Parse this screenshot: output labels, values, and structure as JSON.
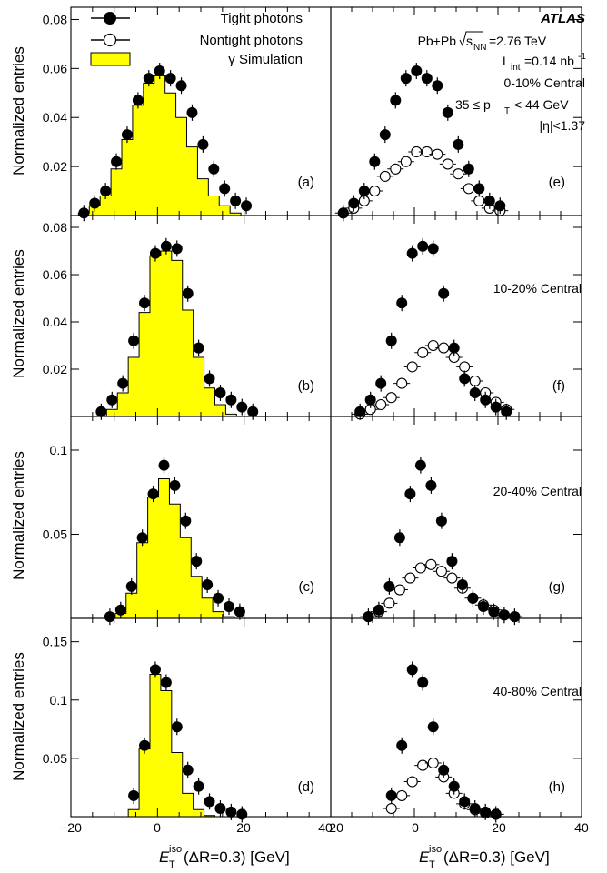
{
  "figure": {
    "ylabel": "Normalized entries",
    "xlabel_main": "E",
    "xlabel_sub": "T",
    "xlabel_sup": "iso",
    "xlabel_rest": "(ΔR=0.3) [GeV]",
    "xticks": [
      "−20",
      "0",
      "20",
      "40"
    ],
    "xticks_right": [
      "−20",
      "0",
      "20",
      "40"
    ],
    "legend": [
      "Tight photons",
      "Nontight photons",
      "γ Simulation"
    ],
    "info": {
      "atlas": "ATLAS",
      "line1_a": "Pb+Pb",
      "line1_sqrt": "s",
      "line1_sub": "NN",
      "line1_b": "=2.76 TeV",
      "line2_a": "L",
      "line2_sub": "int",
      "line2_b": "=0.14 nb",
      "line2_sup": "-1",
      "line3": "0-10% Central",
      "line4_a": "35 ≤ p",
      "line4_sub": "T",
      "line4_b": "< 44 GeV",
      "line5": "|η|<1.37"
    },
    "colors": {
      "sim_fill": "#ffff00",
      "axis": "#000000"
    }
  },
  "chart_data": [
    {
      "type": "scatter",
      "panel": "a",
      "label": "(a)",
      "xlim": [
        -20,
        40
      ],
      "ylim": [
        0,
        0.085
      ],
      "yticks": [
        0.02,
        0.04,
        0.06,
        0.08
      ],
      "x": [
        -17,
        -14.5,
        -12,
        -9.5,
        -7,
        -4.5,
        -2,
        0.5,
        3,
        5.5,
        8,
        10.5,
        13,
        15.5,
        18,
        20.5
      ],
      "tight": [
        0.001,
        0.005,
        0.01,
        0.022,
        0.033,
        0.047,
        0.056,
        0.059,
        0.056,
        0.053,
        0.042,
        0.029,
        0.019,
        0.011,
        0.006,
        0.004
      ],
      "sim": [
        0.001,
        0.004,
        0.008,
        0.019,
        0.031,
        0.045,
        0.054,
        0.057,
        0.05,
        0.04,
        0.028,
        0.015,
        0.008,
        0.004,
        0.001,
        0
      ]
    },
    {
      "type": "scatter",
      "panel": "b",
      "label": "(b)",
      "xlim": [
        -20,
        40
      ],
      "ylim": [
        0,
        0.085
      ],
      "yticks": [
        0.02,
        0.04,
        0.06,
        0.08
      ],
      "x": [
        -13,
        -10.5,
        -8,
        -5.5,
        -3,
        -0.5,
        2,
        4.5,
        7,
        9.5,
        12,
        14.5,
        17,
        19.5,
        22
      ],
      "tight": [
        0.002,
        0.007,
        0.014,
        0.032,
        0.048,
        0.069,
        0.072,
        0.071,
        0.052,
        0.029,
        0.016,
        0.01,
        0.007,
        0.004,
        0.002
      ],
      "sim": [
        0,
        0.003,
        0.01,
        0.025,
        0.044,
        0.068,
        0.07,
        0.066,
        0.045,
        0.025,
        0.012,
        0.005,
        0.001,
        0,
        0
      ]
    },
    {
      "type": "scatter",
      "panel": "c",
      "label": "(c)",
      "xlim": [
        -20,
        40
      ],
      "ylim": [
        0,
        0.12
      ],
      "yticks": [
        0.05,
        0.1
      ],
      "x": [
        -11,
        -8.5,
        -6,
        -3.5,
        -1,
        1.5,
        4,
        6.5,
        9,
        11.5,
        14,
        16.5,
        19
      ],
      "tight": [
        0.001,
        0.005,
        0.019,
        0.048,
        0.074,
        0.091,
        0.079,
        0.058,
        0.034,
        0.02,
        0.012,
        0.007,
        0.004
      ],
      "sim": [
        0,
        0.003,
        0.015,
        0.045,
        0.072,
        0.083,
        0.068,
        0.048,
        0.025,
        0.012,
        0.004,
        0.001,
        0
      ]
    },
    {
      "type": "scatter",
      "panel": "d",
      "label": "(d)",
      "xlim": [
        -20,
        40
      ],
      "ylim": [
        0,
        0.17
      ],
      "yticks": [
        0.05,
        0.1,
        0.15
      ],
      "x": [
        -5.5,
        -3,
        -0.5,
        2,
        4.5,
        7,
        9.5,
        12,
        14.5,
        17,
        19.5
      ],
      "tight": [
        0.018,
        0.061,
        0.126,
        0.115,
        0.077,
        0.04,
        0.026,
        0.013,
        0.007,
        0.004,
        0.002
      ],
      "sim": [
        0.006,
        0.058,
        0.122,
        0.108,
        0.055,
        0.02,
        0.006,
        0.001,
        0,
        0,
        0
      ]
    },
    {
      "type": "scatter",
      "panel": "e",
      "label": "(e)",
      "xlim": [
        -20,
        40
      ],
      "ylim": [
        0,
        0.085
      ],
      "x": [
        -17,
        -14.5,
        -12,
        -9.5,
        -7,
        -4.5,
        -2,
        0.5,
        3,
        5.5,
        8,
        10.5,
        13,
        15.5,
        18,
        20.5
      ],
      "tight": [
        0.001,
        0.005,
        0.01,
        0.022,
        0.033,
        0.047,
        0.056,
        0.059,
        0.056,
        0.053,
        0.042,
        0.029,
        0.019,
        0.011,
        0.006,
        0.004
      ],
      "nontight": [
        0.001,
        0.003,
        0.006,
        0.01,
        0.016,
        0.019,
        0.022,
        0.026,
        0.026,
        0.025,
        0.021,
        0.017,
        0.011,
        0.006,
        0.003,
        0.002
      ]
    },
    {
      "type": "scatter",
      "panel": "f",
      "label": "(f)",
      "centrality": "10-20% Central",
      "xlim": [
        -20,
        40
      ],
      "ylim": [
        0,
        0.085
      ],
      "x": [
        -13,
        -10.5,
        -8,
        -5.5,
        -3,
        -0.5,
        2,
        4.5,
        7,
        9.5,
        12,
        14.5,
        17,
        19.5,
        22
      ],
      "tight": [
        0.002,
        0.007,
        0.014,
        0.032,
        0.048,
        0.069,
        0.072,
        0.071,
        0.052,
        0.029,
        0.016,
        0.01,
        0.007,
        0.004,
        0.002
      ],
      "nontight": [
        0.001,
        0.003,
        0.005,
        0.008,
        0.014,
        0.021,
        0.027,
        0.03,
        0.029,
        0.025,
        0.021,
        0.015,
        0.01,
        0.006,
        0.003
      ]
    },
    {
      "type": "scatter",
      "panel": "g",
      "label": "(g)",
      "centrality": "20-40% Central",
      "xlim": [
        -20,
        40
      ],
      "ylim": [
        0,
        0.12
      ],
      "x": [
        -11,
        -8.5,
        -6,
        -3.5,
        -1,
        1.5,
        4,
        6.5,
        9,
        11.5,
        14,
        16.5,
        19,
        21.5,
        24
      ],
      "tight": [
        0.001,
        0.005,
        0.019,
        0.048,
        0.074,
        0.091,
        0.079,
        0.058,
        0.034,
        0.02,
        0.012,
        0.007,
        0.004,
        0.002,
        0.001
      ],
      "nontight": [
        0.001,
        0.004,
        0.009,
        0.017,
        0.024,
        0.03,
        0.032,
        0.028,
        0.024,
        0.018,
        0.012,
        0.008,
        0.005,
        0.002,
        0.001
      ]
    },
    {
      "type": "scatter",
      "panel": "h",
      "label": "(h)",
      "centrality": "40-80% Central",
      "xlim": [
        -20,
        40
      ],
      "ylim": [
        0,
        0.17
      ],
      "x": [
        -5.5,
        -3,
        -0.5,
        2,
        4.5,
        7,
        9.5,
        12,
        14.5,
        17,
        19.5
      ],
      "tight": [
        0.018,
        0.061,
        0.126,
        0.115,
        0.077,
        0.04,
        0.026,
        0.013,
        0.007,
        0.004,
        0.002
      ],
      "nontight": [
        0.007,
        0.018,
        0.03,
        0.044,
        0.046,
        0.034,
        0.02,
        0.011,
        0.006,
        0.003,
        0.002
      ]
    }
  ]
}
